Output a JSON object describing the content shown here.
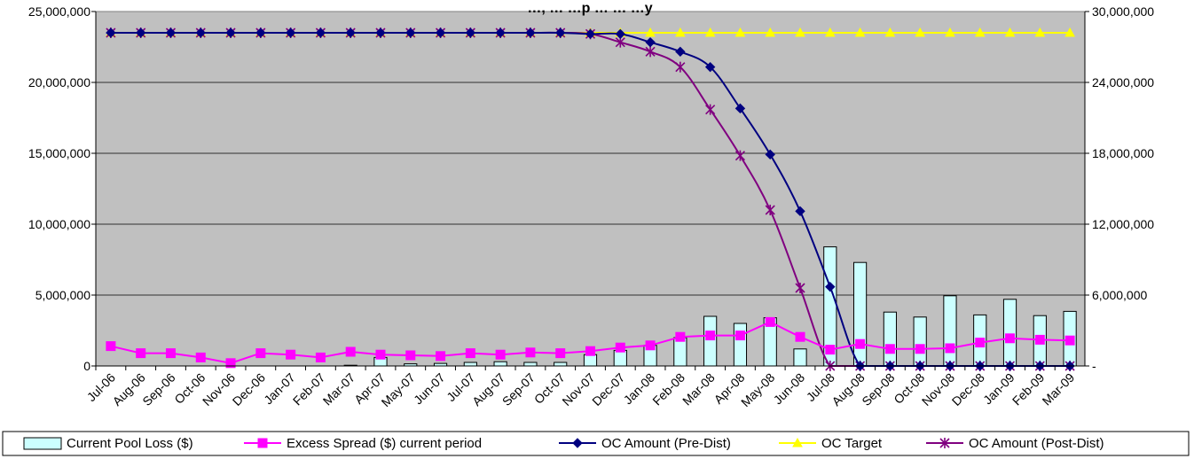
{
  "chart_data": {
    "type": "bar+line",
    "title": "…, … …p … … …y",
    "categories": [
      "Jul-06",
      "Aug-06",
      "Sep-06",
      "Oct-06",
      "Nov-06",
      "Dec-06",
      "Jan-07",
      "Feb-07",
      "Mar-07",
      "Apr-07",
      "May-07",
      "Jun-07",
      "Jul-07",
      "Aug-07",
      "Sep-07",
      "Oct-07",
      "Nov-07",
      "Dec-07",
      "Jan-08",
      "Feb-08",
      "Mar-08",
      "Apr-08",
      "May-08",
      "Jun-08",
      "Jul-08",
      "Aug-08",
      "Sep-08",
      "Oct-08",
      "Nov-08",
      "Dec-08",
      "Jan-09",
      "Feb-09",
      "Mar-09"
    ],
    "y_left": {
      "min": 0,
      "max": 25000000,
      "ticks": [
        "0",
        "5,000,000",
        "10,000,000",
        "15,000,000",
        "20,000,000",
        "25,000,000"
      ]
    },
    "y_right": {
      "min": 0,
      "max": 30000000,
      "ticks": [
        "-",
        "6,000,000",
        "12,000,000",
        "18,000,000",
        "24,000,000",
        "30,000,000"
      ]
    },
    "series": [
      {
        "name": "Current Pool Loss ($)",
        "kind": "bar",
        "axis": "left",
        "color": "#ccffff",
        "values": [
          0,
          0,
          0,
          0,
          0,
          0,
          0,
          0,
          50000,
          600000,
          150000,
          180000,
          250000,
          300000,
          250000,
          250000,
          800000,
          1100000,
          1450000,
          2000000,
          3500000,
          3000000,
          3400000,
          1200000,
          8400000,
          7300000,
          3800000,
          3450000,
          4950000,
          3600000,
          4700000,
          3550000,
          3850000
        ]
      },
      {
        "name": "Excess Spread ($) current period",
        "kind": "line",
        "axis": "left",
        "color": "#ff00ff",
        "marker": "square",
        "values": [
          1400000,
          900000,
          900000,
          600000,
          200000,
          900000,
          800000,
          600000,
          1000000,
          800000,
          750000,
          700000,
          900000,
          800000,
          950000,
          900000,
          1050000,
          1300000,
          1450000,
          2050000,
          2150000,
          2150000,
          3100000,
          2050000,
          1150000,
          1550000,
          1200000,
          1200000,
          1250000,
          1650000,
          1950000,
          1850000,
          1800000
        ]
      },
      {
        "name": "OC Amount (Pre-Dist)",
        "kind": "line",
        "axis": "right",
        "color": "#000080",
        "marker": "diamond",
        "values": [
          28200000,
          28200000,
          28200000,
          28200000,
          28200000,
          28200000,
          28200000,
          28200000,
          28200000,
          28200000,
          28200000,
          28200000,
          28200000,
          28200000,
          28200000,
          28200000,
          28100000,
          28100000,
          27400000,
          26600000,
          25300000,
          21800000,
          17900000,
          13100000,
          6700000,
          0,
          0,
          0,
          0,
          0,
          0,
          0,
          0
        ]
      },
      {
        "name": "OC Target",
        "kind": "line",
        "axis": "right",
        "color": "#ffff00",
        "marker": "triangle",
        "values": [
          28200000,
          28200000,
          28200000,
          28200000,
          28200000,
          28200000,
          28200000,
          28200000,
          28200000,
          28200000,
          28200000,
          28200000,
          28200000,
          28200000,
          28200000,
          28200000,
          28200000,
          28200000,
          28200000,
          28200000,
          28200000,
          28200000,
          28200000,
          28200000,
          28200000,
          28200000,
          28200000,
          28200000,
          28200000,
          28200000,
          28200000,
          28200000,
          28200000
        ]
      },
      {
        "name": "OC Amount (Post-Dist)",
        "kind": "line",
        "axis": "right",
        "color": "#800080",
        "marker": "star",
        "values": [
          28200000,
          28200000,
          28200000,
          28200000,
          28200000,
          28200000,
          28200000,
          28200000,
          28200000,
          28200000,
          28200000,
          28200000,
          28200000,
          28200000,
          28200000,
          28200000,
          28100000,
          27400000,
          26600000,
          25300000,
          21700000,
          17800000,
          13200000,
          6600000,
          0,
          0,
          0,
          0,
          0,
          0,
          0,
          0,
          0
        ]
      }
    ],
    "grid": true,
    "legend": "bottom"
  }
}
